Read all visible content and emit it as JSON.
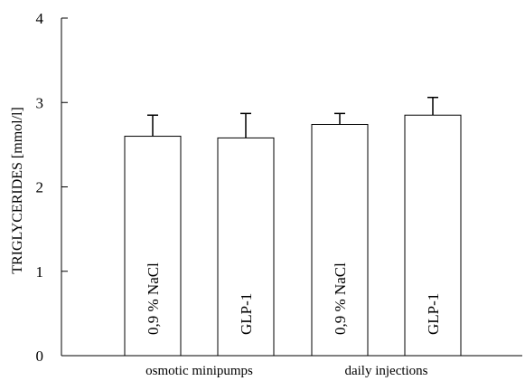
{
  "chart_data": {
    "type": "bar",
    "ylabel": "TRIGLYCERIDES [mmol/l]",
    "xlabel": "",
    "ylim": [
      0,
      4
    ],
    "yticks": [
      0,
      1,
      2,
      3,
      4
    ],
    "grid": false,
    "categories": [
      "0,9 % NaCl",
      "GLP-1",
      "0,9 % NaCl",
      "GLP-1"
    ],
    "values": [
      2.6,
      2.58,
      2.74,
      2.85
    ],
    "errors": [
      0.25,
      0.29,
      0.13,
      0.21
    ],
    "groups": [
      {
        "label": "osmotic minipumps",
        "bars": [
          0,
          1
        ]
      },
      {
        "label": "daily injections",
        "bars": [
          2,
          3
        ]
      }
    ],
    "colors": {
      "bar_fill": "#ffffff",
      "stroke": "#000000"
    }
  }
}
